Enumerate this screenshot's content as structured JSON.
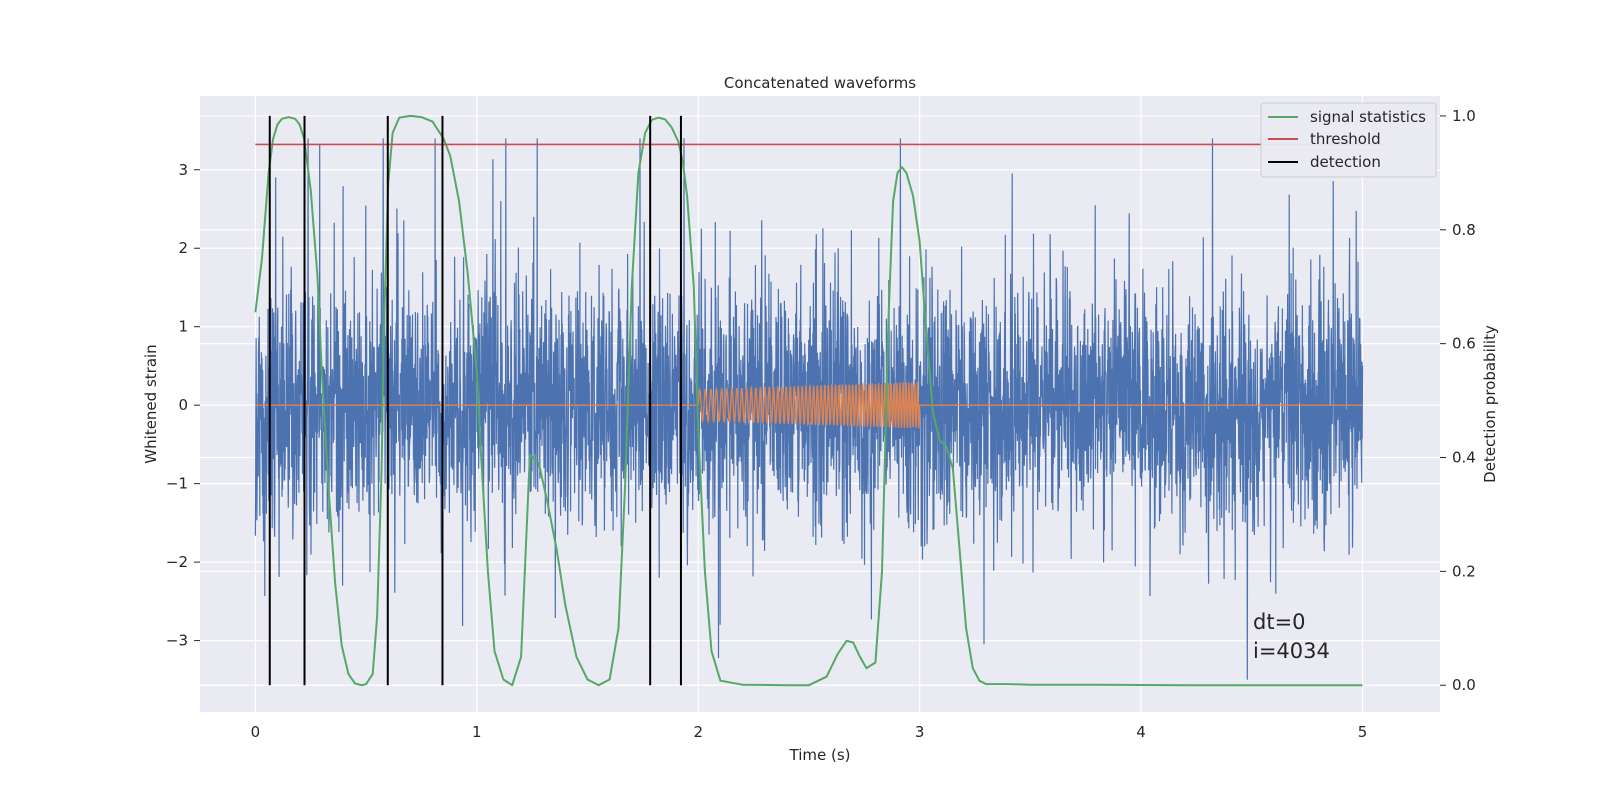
{
  "chart_data": {
    "type": "line",
    "title": "Concatenated waveforms",
    "xlabel": "Time (s)",
    "ylabel": "Whitened strain",
    "y2label": "Detection probability",
    "xlim": [
      -0.25,
      5.35
    ],
    "ylim": [
      -3.91,
      3.94
    ],
    "y2lim": [
      -0.047,
      1.035
    ],
    "x_ticks": [
      0,
      1,
      2,
      3,
      4,
      5
    ],
    "y_ticks": [
      -3,
      -2,
      -1,
      0,
      1,
      2,
      3
    ],
    "y2_ticks": [
      0.0,
      0.2,
      0.4,
      0.6,
      0.8,
      1.0
    ],
    "x_tick_labels": [
      "0",
      "1",
      "2",
      "3",
      "4",
      "5"
    ],
    "y_tick_labels": [
      "−3",
      "−2",
      "−1",
      "0",
      "1",
      "2",
      "3"
    ],
    "y2_tick_labels": [
      "0.0",
      "0.2",
      "0.4",
      "0.6",
      "0.8",
      "1.0"
    ],
    "grid": true,
    "legend_position": "top-right",
    "legend": [
      "signal statistics",
      "threshold",
      "detection"
    ],
    "colors": {
      "strain": "#4c72b0",
      "waveform": "#dd8452",
      "signal_statistics": "#55a868",
      "threshold": "#c44e52",
      "detection": "#000000",
      "background": "#eaeaf2",
      "grid": "#ffffff"
    },
    "strain": {
      "x_range": [
        0,
        5
      ],
      "typical_band": [
        -0.75,
        0.75
      ],
      "peak_range": [
        -3.5,
        3.4
      ]
    },
    "injected_waveform": {
      "x_range": [
        2.0,
        3.0
      ],
      "amplitude_start": 0.2,
      "amplitude_end": 0.3
    },
    "series": [
      {
        "name": "signal statistics",
        "axis": "right",
        "x": [
          0.0,
          0.03,
          0.06,
          0.08,
          0.1,
          0.12,
          0.15,
          0.18,
          0.2,
          0.22,
          0.25,
          0.28,
          0.3,
          0.33,
          0.36,
          0.39,
          0.42,
          0.45,
          0.48,
          0.5,
          0.53,
          0.55,
          0.57,
          0.58,
          0.6,
          0.62,
          0.65,
          0.7,
          0.75,
          0.8,
          0.85,
          0.88,
          0.92,
          0.96,
          1.0,
          1.02,
          1.05,
          1.08,
          1.12,
          1.16,
          1.2,
          1.24,
          1.28,
          1.32,
          1.36,
          1.4,
          1.45,
          1.5,
          1.55,
          1.6,
          1.64,
          1.67,
          1.7,
          1.73,
          1.76,
          1.79,
          1.82,
          1.85,
          1.88,
          1.91,
          1.93,
          1.95,
          1.98,
          2.0,
          2.03,
          2.06,
          2.1,
          2.2,
          2.4,
          2.5,
          2.58,
          2.63,
          2.67,
          2.7,
          2.73,
          2.76,
          2.8,
          2.83,
          2.86,
          2.88,
          2.9,
          2.92,
          2.94,
          2.97,
          3.0,
          3.03,
          3.06,
          3.09,
          3.12,
          3.15,
          3.18,
          3.21,
          3.24,
          3.27,
          3.3,
          3.4,
          3.5,
          3.8,
          4.2,
          4.6,
          5.0
        ],
        "values": [
          0.655,
          0.75,
          0.9,
          0.96,
          0.985,
          0.995,
          0.998,
          0.995,
          0.985,
          0.96,
          0.87,
          0.72,
          0.55,
          0.35,
          0.18,
          0.07,
          0.02,
          0.003,
          0.0,
          0.002,
          0.02,
          0.12,
          0.38,
          0.62,
          0.88,
          0.97,
          0.997,
          1.0,
          0.998,
          0.99,
          0.96,
          0.93,
          0.85,
          0.72,
          0.55,
          0.4,
          0.2,
          0.06,
          0.01,
          0.0,
          0.05,
          0.405,
          0.39,
          0.32,
          0.24,
          0.14,
          0.05,
          0.01,
          0.0,
          0.01,
          0.1,
          0.35,
          0.7,
          0.9,
          0.97,
          0.993,
          0.997,
          0.994,
          0.98,
          0.955,
          0.92,
          0.86,
          0.7,
          0.45,
          0.2,
          0.06,
          0.008,
          0.001,
          0.0,
          0.0,
          0.015,
          0.055,
          0.078,
          0.075,
          0.05,
          0.03,
          0.04,
          0.2,
          0.65,
          0.85,
          0.9,
          0.91,
          0.9,
          0.86,
          0.78,
          0.62,
          0.48,
          0.43,
          0.42,
          0.38,
          0.24,
          0.1,
          0.03,
          0.008,
          0.002,
          0.002,
          0.001,
          0.001,
          0.0,
          0.0,
          0.0
        ]
      },
      {
        "name": "threshold",
        "axis": "right",
        "x": [
          0,
          5.1
        ],
        "values": [
          0.95,
          0.95
        ]
      },
      {
        "name": "detection",
        "axis": "right",
        "type": "vlines",
        "x": [
          0.065,
          0.222,
          0.598,
          0.845,
          1.783,
          1.922
        ]
      }
    ],
    "annotations": [
      "dt=0",
      "i=4034"
    ]
  }
}
